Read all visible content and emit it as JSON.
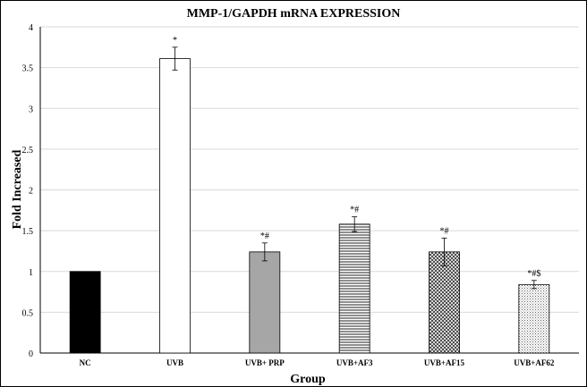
{
  "chart_data": {
    "type": "bar",
    "title": "MMP-1/GAPDH mRNA EXPRESSION",
    "xlabel": "Group",
    "ylabel": "Fold  Increased",
    "ylim": [
      0,
      4
    ],
    "yticks": [
      "0",
      "0.5",
      "1",
      "1.5",
      "2",
      "2.5",
      "3",
      "3.5",
      "4"
    ],
    "grid": true,
    "categories": [
      "NC",
      "UVB",
      "UVB+ PRP",
      "UVB+AF3",
      "UVB+AF15",
      "UVB+AF62"
    ],
    "values": [
      1.0,
      3.61,
      1.24,
      1.58,
      1.24,
      0.84
    ],
    "errors": [
      0.0,
      0.14,
      0.11,
      0.09,
      0.17,
      0.05
    ],
    "annotations": [
      "",
      "*",
      "*#",
      "*#",
      "*#",
      "*#$"
    ],
    "fills": [
      "solid-black",
      "white",
      "solid-gray",
      "horizontal-lines",
      "diagonal-crosshatch",
      "dots"
    ]
  }
}
